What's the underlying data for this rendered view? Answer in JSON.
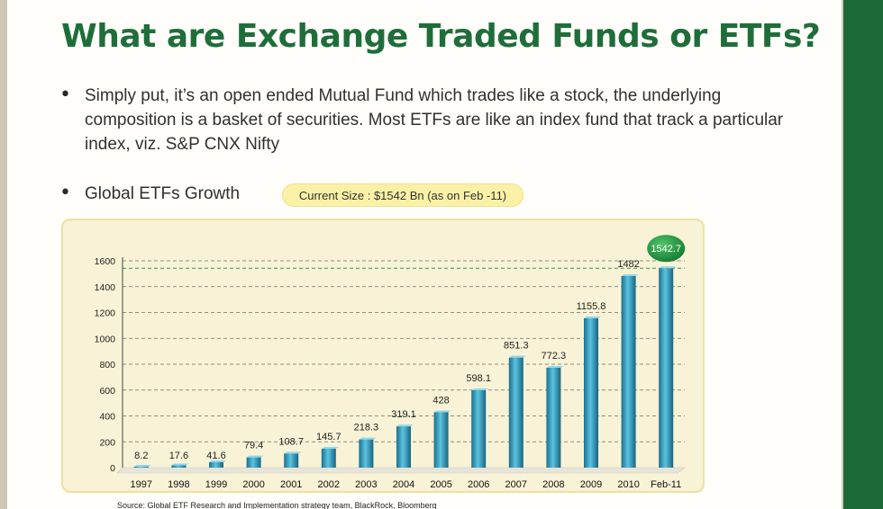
{
  "title": "What are Exchange Traded Funds or ETFs?",
  "bullets": [
    "Simply put, it’s an open ended Mutual Fund which trades like a stock, the underlying composition is a basket of securities. Most ETFs are like an index fund that track a particular index, viz. S&P CNX Nifty",
    "Global ETFs Growth"
  ],
  "bullet_symbol": "•",
  "badge": "Current Size : $1542 Bn (as on Feb -11)",
  "source": "Source: Global ETF Research and Implementation strategy team, BlackRock, Bloomberg",
  "colors": {
    "title": "#1f6e3a",
    "bar": "#2a8fb0",
    "highlight_badge": "#1f9a3e",
    "chart_bg": "#f8f2d6",
    "side_band": "#1c6b36"
  },
  "chart_data": {
    "type": "bar",
    "categories": [
      "1997",
      "1998",
      "1999",
      "2000",
      "2001",
      "2002",
      "2003",
      "2004",
      "2005",
      "2006",
      "2007",
      "2008",
      "2009",
      "2010",
      "Feb-11"
    ],
    "values": [
      8.2,
      17.6,
      41.6,
      79.4,
      108.7,
      145.7,
      218.3,
      319.1,
      428,
      598.1,
      851.3,
      772.3,
      1155.8,
      1482,
      1542.7
    ],
    "data_labels": [
      "8.2",
      "17.6",
      "41.6",
      "79.4",
      "108.7",
      "145.7",
      "218.3",
      "319.1",
      "428",
      "598.1",
      "851.3",
      "772.3",
      "1155.8",
      "1482",
      "1542.7"
    ],
    "highlighted_label": "1542.7",
    "ylim": [
      0,
      1600
    ],
    "yticks": [
      0,
      200,
      400,
      600,
      800,
      1000,
      1200,
      1400,
      1600
    ],
    "grid": true,
    "reference_line": 1542.7,
    "title": "",
    "xlabel": "",
    "ylabel": ""
  }
}
